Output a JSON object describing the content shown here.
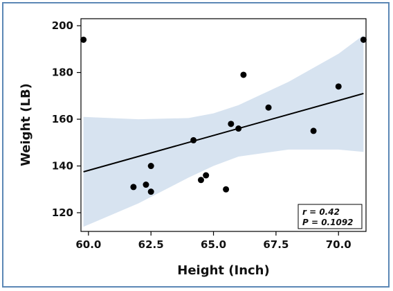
{
  "chart_data": {
    "type": "scatter",
    "title": "",
    "xlabel": "Height (Inch)",
    "ylabel": "Weight (LB)",
    "xlim": [
      59.7,
      71.1
    ],
    "ylim": [
      112,
      203
    ],
    "xticks": [
      60.0,
      62.5,
      65.0,
      67.5,
      70.0
    ],
    "xtick_labels": [
      "60.0",
      "62.5",
      "65.0",
      "67.5",
      "70.0"
    ],
    "yticks": [
      120,
      140,
      160,
      180,
      200
    ],
    "ytick_labels": [
      "120",
      "140",
      "160",
      "180",
      "200"
    ],
    "grid": false,
    "points": [
      {
        "x": 59.8,
        "y": 194
      },
      {
        "x": 61.8,
        "y": 131
      },
      {
        "x": 62.3,
        "y": 132
      },
      {
        "x": 62.5,
        "y": 140
      },
      {
        "x": 62.5,
        "y": 129
      },
      {
        "x": 64.2,
        "y": 151
      },
      {
        "x": 64.5,
        "y": 134
      },
      {
        "x": 64.7,
        "y": 136
      },
      {
        "x": 65.5,
        "y": 130
      },
      {
        "x": 65.7,
        "y": 158
      },
      {
        "x": 66.0,
        "y": 156
      },
      {
        "x": 66.2,
        "y": 179
      },
      {
        "x": 67.2,
        "y": 165
      },
      {
        "x": 69.0,
        "y": 155
      },
      {
        "x": 70.0,
        "y": 174
      },
      {
        "x": 71.0,
        "y": 194
      }
    ],
    "regression_line": {
      "x": [
        59.8,
        71.0
      ],
      "y": [
        137.5,
        171.0
      ]
    },
    "confidence_band": {
      "x": [
        59.8,
        62.0,
        64.0,
        65.0,
        66.0,
        68.0,
        70.0,
        71.0
      ],
      "upper": [
        161.0,
        160.0,
        160.5,
        162.5,
        166.0,
        176.0,
        188.0,
        196.0
      ],
      "lower": [
        114.0,
        124.0,
        135.0,
        140.0,
        144.0,
        147.0,
        147.0,
        146.0
      ]
    },
    "annotation": {
      "r_text": "r = 0.42",
      "p_text": "P = 0.1092"
    },
    "colors": {
      "points": "#000000",
      "line": "#000000",
      "band": "#d7e3f0",
      "frame": "#5b87b5"
    }
  }
}
